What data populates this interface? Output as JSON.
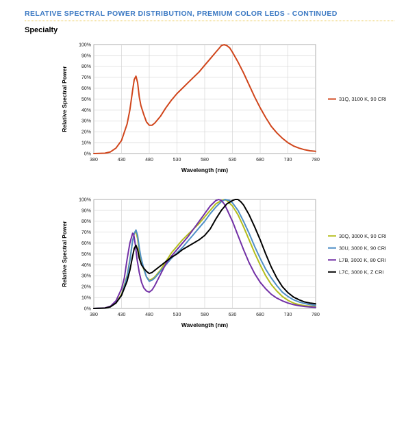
{
  "header": {
    "title": "RELATIVE SPECTRAL POWER DISTRIBUTION, PREMIUM COLOR LEDS - CONTINUED",
    "section": "Specialty"
  },
  "chart_data": [
    {
      "type": "line",
      "xlabel": "Wavelength (nm)",
      "ylabel": "Relative Spectral Power",
      "xlim": [
        380,
        780
      ],
      "ylim": [
        0,
        100
      ],
      "xticks": [
        380,
        430,
        480,
        530,
        580,
        630,
        680,
        730,
        780
      ],
      "yticks": [
        "0%",
        "10%",
        "20%",
        "30%",
        "40%",
        "50%",
        "60%",
        "70%",
        "80%",
        "90%",
        "100%"
      ],
      "grid": true,
      "legend_position": "right",
      "series": [
        {
          "name": "31Q, 3100 K, 90 CRI",
          "color": "#d0451b",
          "x": [
            380,
            400,
            410,
            420,
            430,
            440,
            445,
            450,
            453,
            456,
            459,
            462,
            465,
            470,
            475,
            480,
            485,
            490,
            500,
            510,
            520,
            530,
            540,
            550,
            560,
            570,
            580,
            590,
            600,
            605,
            610,
            615,
            620,
            625,
            630,
            640,
            650,
            660,
            670,
            680,
            690,
            700,
            710,
            720,
            730,
            740,
            750,
            760,
            770,
            780
          ],
          "y": [
            0,
            0.3,
            1.5,
            5,
            12,
            27,
            40,
            58,
            68,
            71,
            65,
            52,
            44,
            36,
            29,
            26,
            26,
            28,
            34,
            42,
            49,
            55,
            60,
            65,
            70,
            75,
            81,
            87,
            93,
            96,
            99,
            100,
            99,
            97,
            93,
            84,
            74,
            63,
            52,
            42,
            33,
            25,
            19,
            14,
            10,
            7,
            5,
            3.5,
            2.5,
            2
          ]
        }
      ]
    },
    {
      "type": "line",
      "xlabel": "Wavelength (nm)",
      "ylabel": "Relative Spectral Power",
      "xlim": [
        380,
        780
      ],
      "ylim": [
        0,
        100
      ],
      "xticks": [
        380,
        430,
        480,
        530,
        580,
        630,
        680,
        730,
        780
      ],
      "yticks": [
        "0%",
        "10%",
        "20%",
        "30%",
        "40%",
        "50%",
        "60%",
        "70%",
        "80%",
        "90%",
        "100%"
      ],
      "grid": true,
      "legend_position": "right",
      "series": [
        {
          "name": "30Q, 3000 K, 90 CRI",
          "color": "#b4bd1c",
          "x": [
            380,
            400,
            410,
            420,
            430,
            440,
            445,
            450,
            453,
            456,
            459,
            462,
            465,
            470,
            475,
            480,
            485,
            490,
            500,
            510,
            520,
            530,
            540,
            550,
            560,
            570,
            580,
            590,
            600,
            610,
            615,
            620,
            630,
            640,
            650,
            660,
            670,
            680,
            690,
            700,
            710,
            720,
            730,
            740,
            750,
            760,
            770,
            780
          ],
          "y": [
            0,
            0.3,
            1.5,
            5,
            13,
            30,
            45,
            62,
            69,
            70,
            64,
            52,
            44,
            36,
            29,
            26,
            27,
            29,
            35,
            43,
            51,
            57,
            63,
            68,
            73,
            78,
            84,
            90,
            96,
            99,
            100,
            99,
            94,
            86,
            75,
            63,
            51,
            40,
            30,
            22,
            16,
            11,
            7.5,
            5,
            3.5,
            2.5,
            2,
            1.5
          ]
        },
        {
          "name": "30U, 3000 K, 90 CRI",
          "color": "#4f8fc6",
          "x": [
            380,
            400,
            410,
            420,
            430,
            440,
            445,
            450,
            453,
            456,
            459,
            462,
            465,
            470,
            475,
            480,
            485,
            490,
            500,
            510,
            520,
            530,
            540,
            550,
            560,
            570,
            580,
            590,
            600,
            610,
            617,
            625,
            630,
            640,
            650,
            660,
            670,
            680,
            690,
            700,
            710,
            720,
            730,
            740,
            750,
            760,
            770,
            780
          ],
          "y": [
            0,
            0.3,
            1.5,
            5,
            12,
            29,
            44,
            62,
            69,
            72,
            67,
            56,
            47,
            37,
            29,
            25,
            26,
            28,
            34,
            40,
            46,
            51,
            56,
            62,
            68,
            74,
            80,
            87,
            93,
            98,
            100,
            99,
            97,
            90,
            80,
            69,
            57,
            46,
            36,
            28,
            21,
            15,
            11,
            8,
            6,
            4.5,
            3.5,
            2.8
          ]
        },
        {
          "name": "L7B, 3000 K, 80 CRI",
          "color": "#7230a6",
          "x": [
            380,
            400,
            410,
            420,
            430,
            435,
            440,
            445,
            450,
            452,
            455,
            458,
            462,
            466,
            470,
            475,
            480,
            485,
            490,
            500,
            510,
            520,
            530,
            540,
            550,
            560,
            570,
            580,
            590,
            600,
            605,
            610,
            615,
            620,
            630,
            640,
            650,
            660,
            670,
            680,
            690,
            700,
            710,
            720,
            730,
            740,
            750,
            760,
            770,
            780
          ],
          "y": [
            0,
            0.5,
            2,
            7,
            18,
            28,
            45,
            60,
            69,
            68,
            58,
            45,
            33,
            24,
            19,
            16,
            15,
            17,
            21,
            31,
            41,
            48,
            54,
            60,
            66,
            73,
            80,
            87,
            94,
            99,
            100,
            99,
            96,
            91,
            80,
            67,
            54,
            42,
            32,
            24,
            18,
            13,
            9.5,
            7,
            5,
            3.5,
            2.5,
            1.8,
            1.3,
            1
          ]
        },
        {
          "name": "L7C, 3000 K, Z CRI",
          "color": "#000000",
          "x": [
            380,
            400,
            410,
            420,
            430,
            440,
            445,
            450,
            453,
            456,
            459,
            462,
            466,
            470,
            475,
            480,
            485,
            490,
            500,
            510,
            520,
            530,
            540,
            550,
            560,
            570,
            580,
            590,
            600,
            610,
            620,
            630,
            635,
            640,
            645,
            650,
            660,
            670,
            680,
            690,
            700,
            710,
            720,
            730,
            740,
            750,
            760,
            770,
            780
          ],
          "y": [
            0,
            0.3,
            1.5,
            5,
            12,
            25,
            35,
            48,
            55,
            58,
            54,
            46,
            40,
            37,
            34,
            32,
            33,
            35,
            39,
            43,
            47,
            50,
            54,
            57,
            60,
            63,
            67,
            73,
            82,
            90,
            96,
            99,
            100,
            100,
            98,
            95,
            86,
            75,
            63,
            50,
            38,
            28,
            20,
            14.5,
            10.5,
            8,
            6,
            5,
            4.2
          ]
        }
      ]
    }
  ]
}
